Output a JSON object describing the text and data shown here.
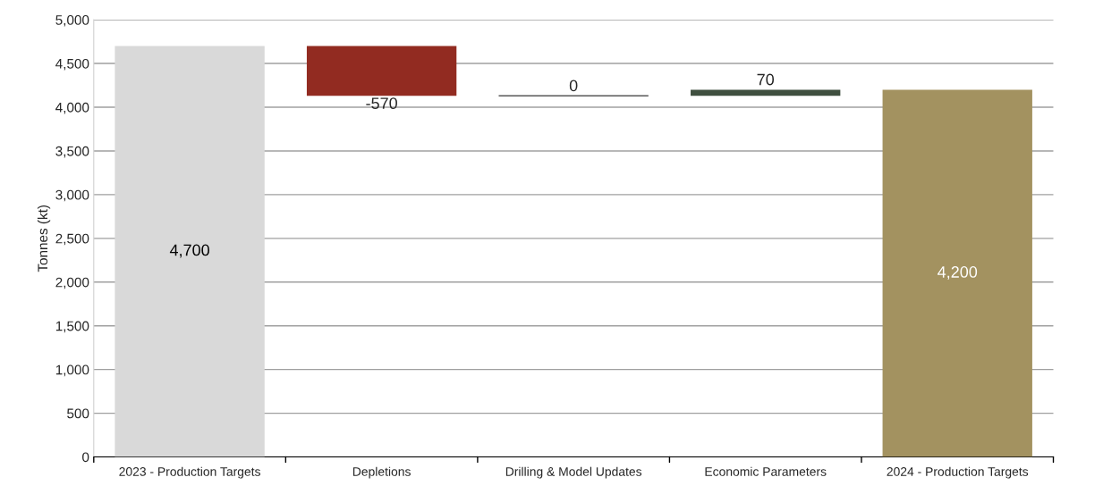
{
  "chart_data": {
    "type": "bar",
    "ylabel": "Tonnes (kt)",
    "categories": [
      "2023 - Production Targets",
      "Depletions",
      "Drilling & Model Updates",
      "Economic Parameters",
      "2024 - Production Targets"
    ],
    "values": [
      4700,
      -570,
      0,
      70,
      4200
    ],
    "base": [
      0,
      4700,
      4130,
      4130,
      0
    ],
    "colors": [
      "#d9d9d9",
      "#922b21",
      "#595959",
      "#3f4f3f",
      "#a39260"
    ],
    "value_labels": [
      "4,700",
      "-570",
      "0",
      "70",
      "4,200"
    ],
    "ylim": [
      0,
      5000
    ],
    "yticks": [
      {
        "value": 0,
        "label": "0"
      },
      {
        "value": 500,
        "label": "500"
      },
      {
        "value": 1000,
        "label": "1,000"
      },
      {
        "value": 1500,
        "label": "1,500"
      },
      {
        "value": 2000,
        "label": "2,000"
      },
      {
        "value": 2500,
        "label": "2,500"
      },
      {
        "value": 3000,
        "label": "3,000"
      },
      {
        "value": 3500,
        "label": "3,500"
      },
      {
        "value": 4000,
        "label": "4,000"
      },
      {
        "value": 4500,
        "label": "4,500"
      },
      {
        "value": 5000,
        "label": "5,000"
      }
    ],
    "grid": "y"
  }
}
